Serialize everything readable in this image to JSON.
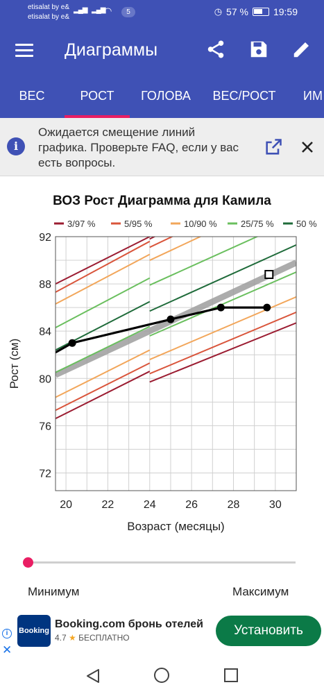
{
  "status_bar": {
    "carrier1": "etisalat by e&",
    "carrier2": "etisalat by e&",
    "signal_label": "3G",
    "notification_count": "5",
    "battery": "57 %",
    "time": "19:59"
  },
  "app_bar": {
    "title": "Диаграммы",
    "icons": [
      "menu-icon",
      "share-icon",
      "save-icon",
      "edit-icon"
    ]
  },
  "tabs": [
    {
      "label": "ВЕС",
      "selected": false
    },
    {
      "label": "РОСТ",
      "selected": true
    },
    {
      "label": "ГОЛОВА",
      "selected": false
    },
    {
      "label": "ВЕС/РОСТ",
      "selected": false
    },
    {
      "label": "ИМ",
      "selected": false
    }
  ],
  "notice": {
    "text": "Ожидается смещение линий графика. Проверьте FAQ, если у вас есть вопросы."
  },
  "chart_data": {
    "type": "line",
    "title": "ВОЗ Рост Диаграмма для Камила",
    "xlabel": "Возраст (месяцы)",
    "ylabel": "Рост (см)",
    "xlim": [
      19.5,
      31
    ],
    "ylim": [
      70.5,
      92
    ],
    "x_ticks": [
      20,
      22,
      24,
      26,
      28,
      30
    ],
    "y_ticks": [
      72,
      76,
      80,
      84,
      88,
      92
    ],
    "grid": true,
    "legend_position": "top",
    "legend": [
      {
        "label": "3/97 %",
        "color": "#9b1c31"
      },
      {
        "label": "5/95 %",
        "color": "#d9553b"
      },
      {
        "label": "10/90 %",
        "color": "#f2a65a"
      },
      {
        "label": "25/75 %",
        "color": "#6abf5e"
      },
      {
        "label": "50 %",
        "color": "#1f6b3a"
      }
    ],
    "percentile_segments": [
      {
        "color": "#9b1c31",
        "points": [
          [
            19.5,
            76.6
          ],
          [
            24,
            80.6
          ]
        ]
      },
      {
        "color": "#d9553b",
        "points": [
          [
            19.5,
            77.3
          ],
          [
            24,
            81.3
          ]
        ]
      },
      {
        "color": "#f2a65a",
        "points": [
          [
            19.5,
            78.4
          ],
          [
            24,
            82.4
          ]
        ]
      },
      {
        "color": "#6abf5e",
        "points": [
          [
            19.5,
            80.5
          ],
          [
            24,
            84.4
          ]
        ]
      },
      {
        "color": "#6abf5e",
        "points": [
          [
            19.5,
            84.3
          ],
          [
            24,
            88.5
          ]
        ]
      },
      {
        "color": "#f2a65a",
        "points": [
          [
            19.5,
            86.3
          ],
          [
            24,
            90.5
          ]
        ]
      },
      {
        "color": "#d9553b",
        "points": [
          [
            19.5,
            87.3
          ],
          [
            24,
            91.6
          ]
        ]
      },
      {
        "color": "#9b1c31",
        "points": [
          [
            19.5,
            88.0
          ],
          [
            24,
            92.0
          ]
        ]
      },
      {
        "color": "#1f6b3a",
        "points": [
          [
            19.5,
            82.4
          ],
          [
            24,
            86.5
          ]
        ]
      },
      {
        "color": "#9b1c31",
        "points": [
          [
            24,
            79.7
          ],
          [
            31,
            84.7
          ]
        ]
      },
      {
        "color": "#d9553b",
        "points": [
          [
            24,
            80.4
          ],
          [
            31,
            85.6
          ]
        ]
      },
      {
        "color": "#f2a65a",
        "points": [
          [
            24,
            81.6
          ],
          [
            31,
            86.9
          ]
        ]
      },
      {
        "color": "#6abf5e",
        "points": [
          [
            24,
            83.6
          ],
          [
            31,
            89.0
          ]
        ]
      },
      {
        "color": "#1f6b3a",
        "points": [
          [
            24,
            85.7
          ],
          [
            31,
            91.3
          ]
        ]
      },
      {
        "color": "#6abf5e",
        "points": [
          [
            24,
            87.9
          ],
          [
            31,
            93.5
          ]
        ]
      },
      {
        "color": "#f2a65a",
        "points": [
          [
            24,
            90.0
          ],
          [
            31,
            95.8
          ]
        ]
      },
      {
        "color": "#d9553b",
        "points": [
          [
            24,
            91.1
          ],
          [
            31,
            97.0
          ]
        ]
      },
      {
        "color": "#9b1c31",
        "points": [
          [
            24,
            91.8
          ],
          [
            31,
            98.0
          ]
        ]
      }
    ],
    "trend_line": {
      "color": "#9e9e9e",
      "points": [
        [
          19.5,
          80.3
        ],
        [
          31,
          89.8
        ]
      ]
    },
    "series": [
      {
        "color": "#000000",
        "x": [
          19.5,
          20.3,
          25.0,
          27.4,
          29.6
        ],
        "y": [
          82.2,
          83.0,
          85.0,
          86.0,
          86.0
        ],
        "markers": [
          false,
          true,
          true,
          true,
          true
        ]
      }
    ],
    "projected_point": {
      "x": 29.7,
      "y": 88.8
    }
  },
  "slider": {
    "min_label": "Минимум",
    "max_label": "Максимум",
    "value": 0
  },
  "ad": {
    "logo_text": "Booking",
    "title": "Booking.com бронь отелей",
    "rating": "4.7",
    "price": "БЕСПЛАТНО",
    "button": "Установить"
  }
}
